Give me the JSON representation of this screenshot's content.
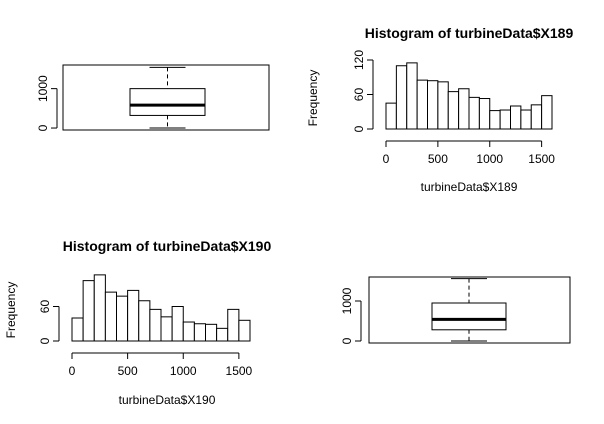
{
  "chart_data": [
    {
      "type": "boxplot",
      "panel": "top-left",
      "title": "",
      "ylim": [
        -50,
        1600
      ],
      "yticks": [
        0,
        1000
      ],
      "ytick_labels": [
        "0",
        "1000"
      ],
      "min": 0,
      "q1": 320,
      "median": 580,
      "q3": 1000,
      "max": 1540
    },
    {
      "type": "bar",
      "panel": "top-right",
      "title": "Histogram of turbineData$X189",
      "xlabel": "turbineData$X189",
      "ylabel": "Frequency",
      "xticks": [
        0,
        500,
        1000,
        1500
      ],
      "yticks": [
        0,
        60,
        120
      ],
      "ylim": [
        0,
        130
      ],
      "bin_start": 0,
      "bin_width": 100,
      "values": [
        45,
        110,
        115,
        85,
        84,
        82,
        65,
        70,
        55,
        53,
        32,
        33,
        40,
        33,
        42,
        58
      ]
    },
    {
      "type": "bar",
      "panel": "bottom-left",
      "title": "Histogram of turbineData$X190",
      "xlabel": "turbineData$X190",
      "ylabel": "Frequency",
      "xticks": [
        0,
        500,
        1000,
        1500
      ],
      "yticks": [
        0,
        60
      ],
      "ylim": [
        0,
        130
      ],
      "bin_start": 0,
      "bin_width": 100,
      "values": [
        40,
        105,
        115,
        85,
        78,
        88,
        70,
        55,
        42,
        60,
        33,
        30,
        29,
        22,
        55,
        36
      ]
    },
    {
      "type": "boxplot",
      "panel": "bottom-right",
      "title": "",
      "ylim": [
        -50,
        1600
      ],
      "yticks": [
        0,
        1000
      ],
      "ytick_labels": [
        "0",
        "1000"
      ],
      "min": 0,
      "q1": 280,
      "median": 540,
      "q3": 950,
      "max": 1560
    }
  ]
}
